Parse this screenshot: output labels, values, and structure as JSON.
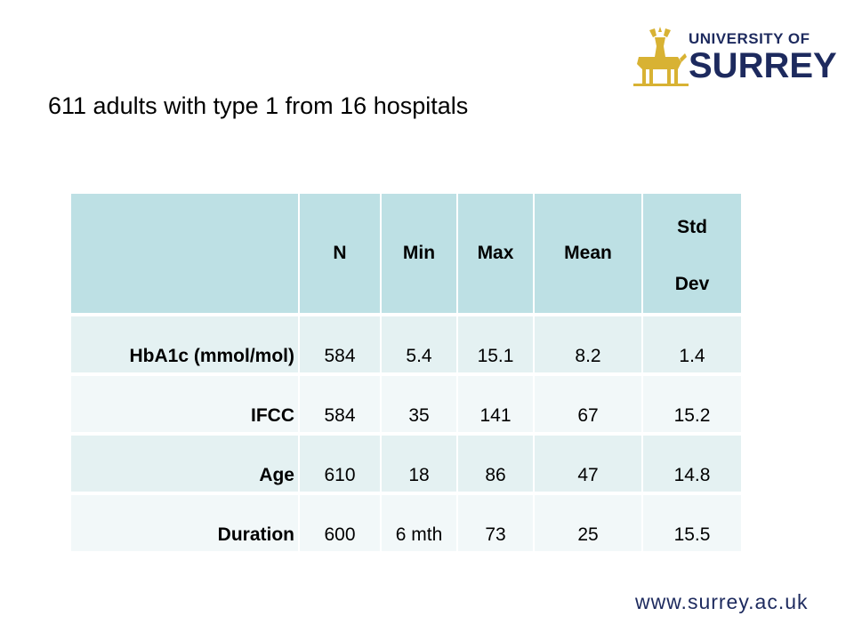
{
  "logo": {
    "line1": "UNIVERSITY OF",
    "line2": "SURREY",
    "stag_color": "#d8b233",
    "text_color": "#1d2a5e"
  },
  "title": "611 adults with type 1 from 16 hospitals",
  "table": {
    "headers": [
      "",
      "N",
      "Min",
      "Max",
      "Mean",
      "Std",
      "Dev"
    ],
    "rows": [
      {
        "label": "HbA1c (mmol/mol)",
        "cells": [
          "584",
          "5.4",
          "15.1",
          "8.2",
          "1.4"
        ]
      },
      {
        "label": "IFCC",
        "cells": [
          "584",
          "35",
          "141",
          "67",
          "15.2"
        ]
      },
      {
        "label": "Age",
        "cells": [
          "610",
          "18",
          "86",
          "47",
          "14.8"
        ]
      },
      {
        "label": "Duration",
        "cells": [
          "600",
          "6 mth",
          "73",
          "25",
          "15.5"
        ]
      }
    ]
  },
  "footer": {
    "url": "www.surrey.ac.uk"
  }
}
